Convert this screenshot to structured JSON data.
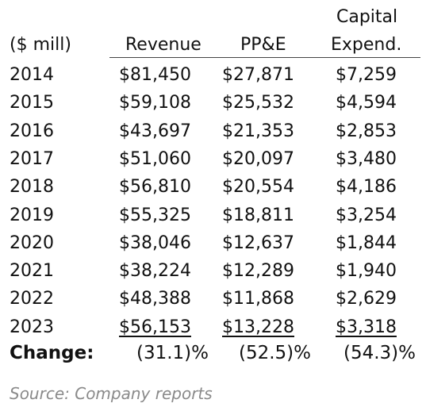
{
  "table": {
    "header": {
      "unit_label": "($ mill)",
      "col_revenue": "Revenue",
      "col_ppe": "PP&E",
      "col_capex_line1": "Capital",
      "col_capex_line2": "Expend."
    },
    "rows": [
      {
        "year": "2014",
        "revenue": "$81,450",
        "ppe": "$27,871",
        "capex": "$7,259"
      },
      {
        "year": "2015",
        "revenue": "$59,108",
        "ppe": "$25,532",
        "capex": "$4,594"
      },
      {
        "year": "2016",
        "revenue": "$43,697",
        "ppe": "$21,353",
        "capex": "$2,853"
      },
      {
        "year": "2017",
        "revenue": "$51,060",
        "ppe": "$20,097",
        "capex": "$3,480"
      },
      {
        "year": "2018",
        "revenue": "$56,810",
        "ppe": "$20,554",
        "capex": "$4,186"
      },
      {
        "year": "2019",
        "revenue": "$55,325",
        "ppe": "$18,811",
        "capex": "$3,254"
      },
      {
        "year": "2020",
        "revenue": "$38,046",
        "ppe": "$12,637",
        "capex": "$1,844"
      },
      {
        "year": "2021",
        "revenue": "$38,224",
        "ppe": "$12,289",
        "capex": "$1,940"
      },
      {
        "year": "2022",
        "revenue": "$48,388",
        "ppe": "$11,868",
        "capex": "$2,629"
      },
      {
        "year": "2023",
        "revenue": "$56,153",
        "ppe": "$13,228",
        "capex": "$3,318"
      }
    ],
    "change": {
      "label": "Change:",
      "revenue": "(31.1)%",
      "ppe": "(52.5)%",
      "capex": "(54.3)%"
    }
  },
  "source": "Source: Company reports"
}
